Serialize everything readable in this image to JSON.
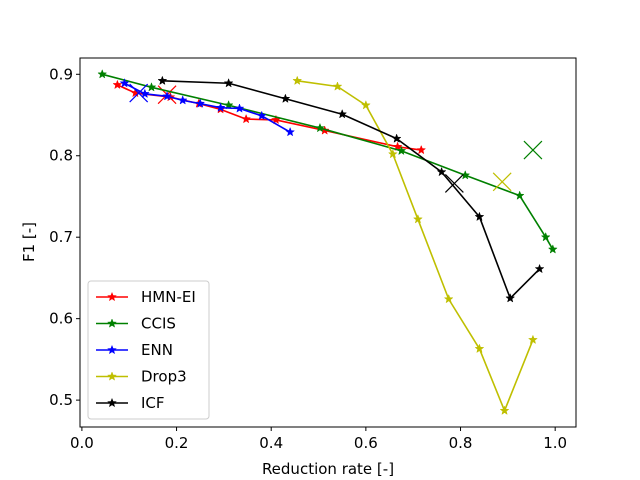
{
  "chart_data": {
    "type": "line",
    "title": "",
    "xlabel": "Reduction rate [-]",
    "ylabel": "F1 [-]",
    "xlim": [
      -0.004,
      1.044
    ],
    "ylim": [
      0.467,
      0.92
    ],
    "xticks": [
      0.0,
      0.2,
      0.4,
      0.6,
      0.8,
      1.0
    ],
    "xtick_labels": [
      "0.0",
      "0.2",
      "0.4",
      "0.6",
      "0.8",
      "1.0"
    ],
    "yticks": [
      0.5,
      0.6,
      0.7,
      0.8,
      0.9
    ],
    "ytick_labels": [
      "0.5",
      "0.6",
      "0.7",
      "0.8",
      "0.9"
    ],
    "grid": false,
    "legend_position": "lower-left",
    "series": [
      {
        "name": "HMN-EI",
        "color": "#ff0000",
        "marker": "star",
        "x": [
          0.075,
          0.113,
          0.187,
          0.247,
          0.293,
          0.347,
          0.41,
          0.513,
          0.667,
          0.717
        ],
        "y": [
          0.887,
          0.877,
          0.872,
          0.864,
          0.857,
          0.845,
          0.844,
          0.831,
          0.811,
          0.807
        ],
        "final_point": {
          "x": 0.18,
          "y": 0.875
        }
      },
      {
        "name": "CCIS",
        "color": "#008000",
        "marker": "star",
        "x": [
          0.043,
          0.147,
          0.31,
          0.503,
          0.675,
          0.81,
          0.925,
          0.98,
          0.995
        ],
        "y": [
          0.9,
          0.884,
          0.862,
          0.834,
          0.806,
          0.776,
          0.751,
          0.7,
          0.685
        ],
        "final_point": {
          "x": 0.953,
          "y": 0.807
        }
      },
      {
        "name": "ENN",
        "color": "#0000ff",
        "marker": "star",
        "x": [
          0.09,
          0.133,
          0.18,
          0.213,
          0.25,
          0.293,
          0.333,
          0.38,
          0.44
        ],
        "y": [
          0.889,
          0.876,
          0.873,
          0.868,
          0.864,
          0.859,
          0.858,
          0.849,
          0.829
        ],
        "final_point": {
          "x": 0.12,
          "y": 0.877
        }
      },
      {
        "name": "Drop3",
        "color": "#bfbf00",
        "marker": "star",
        "x": [
          0.455,
          0.54,
          0.6,
          0.657,
          0.71,
          0.775,
          0.84,
          0.893,
          0.953
        ],
        "y": [
          0.892,
          0.885,
          0.862,
          0.802,
          0.722,
          0.624,
          0.563,
          0.487,
          0.574
        ],
        "final_point": {
          "x": 0.888,
          "y": 0.768
        }
      },
      {
        "name": "ICF",
        "color": "#000000",
        "marker": "star",
        "x": [
          0.17,
          0.31,
          0.43,
          0.55,
          0.665,
          0.76,
          0.84,
          0.905,
          0.967
        ],
        "y": [
          0.892,
          0.889,
          0.87,
          0.851,
          0.821,
          0.78,
          0.725,
          0.625,
          0.661
        ],
        "final_point": {
          "x": 0.787,
          "y": 0.766
        }
      }
    ]
  }
}
